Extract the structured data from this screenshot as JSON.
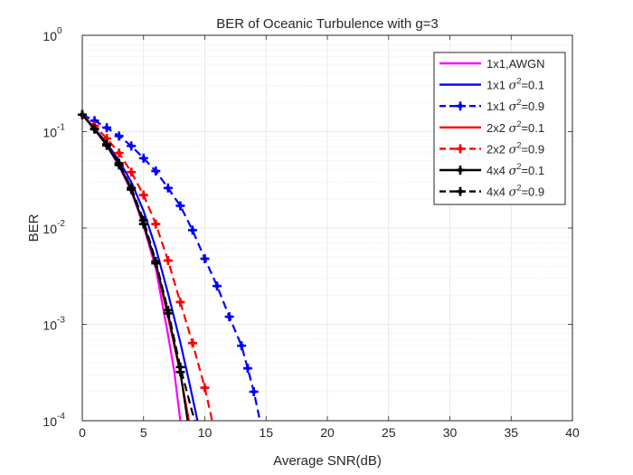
{
  "chart_data": {
    "type": "line",
    "title": "BER of Oceanic Turbulence with g=3",
    "xlabel": "Average SNR(dB)",
    "ylabel": "BER",
    "xlim": [
      0,
      40
    ],
    "ylim": [
      0.0001,
      1
    ],
    "yscale": "log",
    "grid": true,
    "legend_position": "top-right",
    "x_ticks": [
      {
        "value": 0,
        "label": "0"
      },
      {
        "value": 5,
        "label": "5"
      },
      {
        "value": 10,
        "label": "10"
      },
      {
        "value": 15,
        "label": "15"
      },
      {
        "value": 20,
        "label": "20"
      },
      {
        "value": 25,
        "label": "25"
      },
      {
        "value": 30,
        "label": "30"
      },
      {
        "value": 35,
        "label": "35"
      },
      {
        "value": 40,
        "label": "40"
      }
    ],
    "y_ticks": [
      {
        "value": 1,
        "base": "10",
        "exp": "0"
      },
      {
        "value": 0.1,
        "base": "10",
        "exp": "-1"
      },
      {
        "value": 0.01,
        "base": "10",
        "exp": "-2"
      },
      {
        "value": 0.001,
        "base": "10",
        "exp": "-3"
      },
      {
        "value": 0.0001,
        "base": "10",
        "exp": "-4"
      }
    ],
    "series": [
      {
        "name": "1x1,AWGN",
        "legend": {
          "prefix": "1x1,AWGN",
          "symbol": "",
          "sup": "",
          "suffix": ""
        },
        "color": "#ff00ff",
        "dash": "solid",
        "marker": "none",
        "x": [
          0,
          1,
          2,
          3,
          4,
          5,
          6,
          7,
          7.5,
          8
        ],
        "y": [
          0.15,
          0.105,
          0.072,
          0.044,
          0.024,
          0.0105,
          0.0038,
          0.00078,
          0.00033,
          0.0001
        ]
      },
      {
        "name": "1x1 sigma2=0.1",
        "legend": {
          "prefix": "1x1 ",
          "symbol": "σ",
          "sup": "2",
          "suffix": "=0.1"
        },
        "color": "#0000ff",
        "dash": "solid",
        "marker": "none",
        "x": [
          0,
          1,
          2,
          3,
          4,
          5,
          6,
          7,
          8,
          8.7,
          9.4
        ],
        "y": [
          0.15,
          0.108,
          0.076,
          0.05,
          0.03,
          0.015,
          0.0062,
          0.0021,
          0.00065,
          0.00026,
          0.0001
        ]
      },
      {
        "name": "1x1 sigma2=0.9",
        "legend": {
          "prefix": "1x1 ",
          "symbol": "σ",
          "sup": "2",
          "suffix": "=0.9"
        },
        "color": "#0000ff",
        "dash": "dashed",
        "marker": "plus",
        "x": [
          0,
          1,
          2,
          3,
          4,
          5,
          6,
          7,
          8,
          9,
          10,
          11,
          12,
          13,
          13.5,
          14,
          14.5
        ],
        "y": [
          0.15,
          0.13,
          0.11,
          0.09,
          0.071,
          0.053,
          0.039,
          0.026,
          0.017,
          0.0095,
          0.0048,
          0.0025,
          0.0012,
          0.0006,
          0.00035,
          0.0002,
          0.0001
        ]
      },
      {
        "name": "2x2 sigma2=0.1",
        "legend": {
          "prefix": "2x2 ",
          "symbol": "σ",
          "sup": "2",
          "suffix": "=0.1"
        },
        "color": "#ff0000",
        "dash": "solid",
        "marker": "none",
        "x": [
          0,
          1,
          2,
          3,
          4,
          5,
          6,
          7,
          8,
          8.7
        ],
        "y": [
          0.15,
          0.106,
          0.073,
          0.046,
          0.025,
          0.011,
          0.0042,
          0.0012,
          0.00031,
          0.0001
        ]
      },
      {
        "name": "2x2 sigma2=0.9",
        "legend": {
          "prefix": "2x2 ",
          "symbol": "σ",
          "sup": "2",
          "suffix": "=0.9"
        },
        "color": "#ff0000",
        "dash": "dashed",
        "marker": "plus",
        "x": [
          0,
          1,
          2,
          3,
          4,
          5,
          6,
          7,
          8,
          9,
          10,
          10.6
        ],
        "y": [
          0.15,
          0.115,
          0.085,
          0.06,
          0.038,
          0.022,
          0.011,
          0.0046,
          0.0017,
          0.00064,
          0.00022,
          0.0001
        ]
      },
      {
        "name": "4x4 sigma2=0.1",
        "legend": {
          "prefix": "4x4 ",
          "symbol": "σ",
          "sup": "2",
          "suffix": "=0.1"
        },
        "color": "#000000",
        "dash": "solid",
        "marker": "plus",
        "x": [
          0,
          1,
          2,
          3,
          4,
          5,
          6,
          7,
          8,
          8.6
        ],
        "y": [
          0.15,
          0.106,
          0.072,
          0.045,
          0.025,
          0.011,
          0.0043,
          0.0013,
          0.00032,
          0.0001
        ]
      },
      {
        "name": "4x4 sigma2=0.9",
        "legend": {
          "prefix": "4x4 ",
          "symbol": "σ",
          "sup": "2",
          "suffix": "=0.9"
        },
        "color": "#000000",
        "dash": "dashed",
        "marker": "plus",
        "x": [
          0,
          1,
          2,
          3,
          4,
          5,
          6,
          7,
          8,
          9,
          9.2
        ],
        "y": [
          0.15,
          0.107,
          0.074,
          0.047,
          0.026,
          0.012,
          0.0045,
          0.0014,
          0.00036,
          0.00012,
          0.0001
        ]
      }
    ]
  }
}
